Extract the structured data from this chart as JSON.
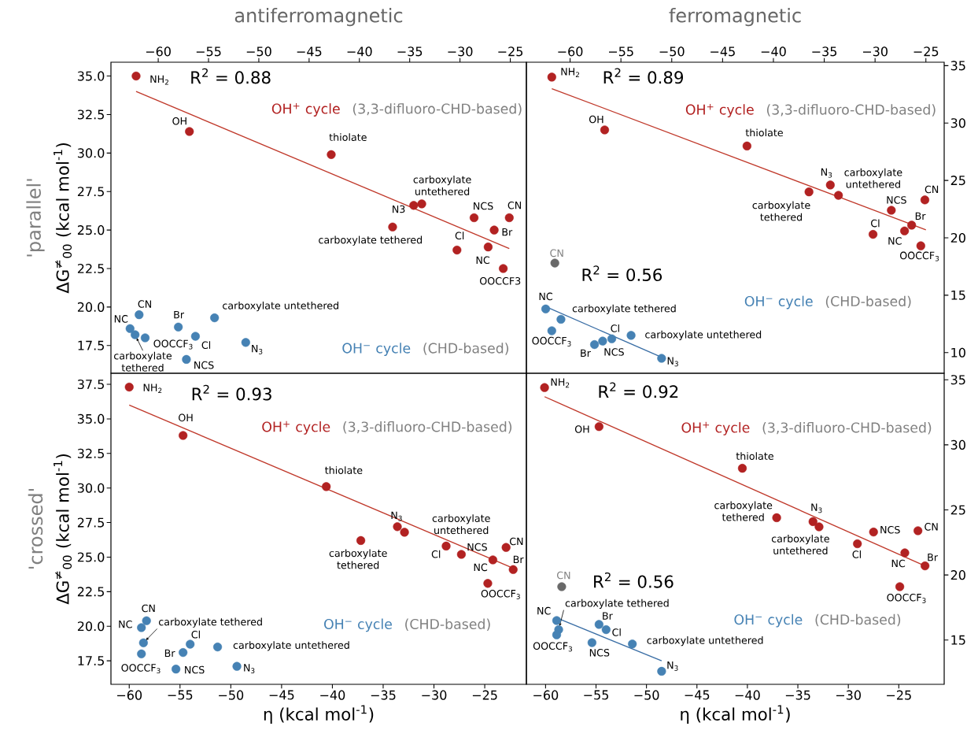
{
  "chart_data": [
    {
      "type": "scatter",
      "title": "antiferromagnetic",
      "ylabel": "ΔG$^{≠}$$_{00}$  (kcal mol$^{-1}$)",
      "xlim": [
        -64.7,
        -23.4
      ],
      "ylim": [
        15.7,
        35.9
      ],
      "xticks": [
        {
          "value": -60,
          "label": "−60"
        },
        {
          "value": -55,
          "label": "−55"
        },
        {
          "value": -50,
          "label": "−50"
        },
        {
          "value": -45,
          "label": "−45"
        },
        {
          "value": -40,
          "label": "−40"
        },
        {
          "value": -35,
          "label": "−35"
        },
        {
          "value": -30,
          "label": "−30"
        },
        {
          "value": -25,
          "label": "−25"
        }
      ],
      "yticks": [
        {
          "value": 17.5,
          "label": "17.5"
        },
        {
          "value": 20,
          "label": "20.0"
        },
        {
          "value": 22.5,
          "label": "22.5"
        },
        {
          "value": 25,
          "label": "25.0"
        },
        {
          "value": 27.5,
          "label": "27.5"
        },
        {
          "value": 30,
          "label": "30.0"
        },
        {
          "value": 32.5,
          "label": "32.5"
        },
        {
          "value": 35,
          "label": "35.0"
        }
      ],
      "series": [
        {
          "name": "OH$^{+}$ cycle",
          "marker": "circle",
          "color": "#b22222",
          "x": [
            -62.2,
            -56.9,
            -42.8,
            -34.6,
            -33.8,
            -36.7,
            -28.6,
            -25.1,
            -30.3,
            -26.6,
            -27.2,
            -25.7
          ],
          "values": [
            35.0,
            31.4,
            29.9,
            26.6,
            26.7,
            25.2,
            25.8,
            25.8,
            23.7,
            25.0,
            23.9,
            22.5
          ]
        },
        {
          "name": "OH$^{−}$ cycle",
          "marker": "circle",
          "color": "#4682b4",
          "x": [
            -61.9,
            -62.8,
            -62.3,
            -61.3,
            -58.0,
            -56.3,
            -54.4,
            -57.2,
            -51.3
          ],
          "values": [
            19.5,
            18.6,
            18.2,
            18.0,
            18.7,
            18.1,
            19.3,
            16.6,
            17.7
          ]
        },
        {
          "type": "line",
          "marker": "none",
          "color": "#c0392b",
          "x": [
            -62.2,
            -25.1
          ],
          "values": [
            34.0,
            23.8
          ]
        }
      ],
      "annotations": [
        "'parallel'",
        "R$^{2}$ = 0.88",
        "(3,3-difluoro-CHD-based)",
        "(CHD-based)",
        {
          "text": "NH$_{2}$",
          "x": -62.2,
          "y": 35.0
        },
        {
          "text": "OH",
          "x": -56.9,
          "y": 31.4
        },
        {
          "text": "thiolate",
          "x": -42.8,
          "y": 29.9
        },
        {
          "text": "N3",
          "x": -34.6,
          "y": 26.6
        },
        {
          "text": "carboxylate untethered",
          "x": -33.8,
          "y": 26.7
        },
        {
          "text": "carboxylate tethered",
          "x": -36.7,
          "y": 25.2
        },
        {
          "text": "NCS",
          "x": -28.6,
          "y": 25.8
        },
        {
          "text": "CN",
          "x": -25.1,
          "y": 25.8
        },
        {
          "text": "Cl",
          "x": -30.3,
          "y": 23.7
        },
        {
          "text": "Br",
          "x": -26.6,
          "y": 25.0
        },
        {
          "text": "NC",
          "x": -27.2,
          "y": 23.9
        },
        {
          "text": "OOCCF3",
          "x": -25.7,
          "y": 22.5
        },
        {
          "text": "CN",
          "x": -61.9,
          "y": 19.5
        },
        {
          "text": "NC",
          "x": -62.8,
          "y": 18.6
        },
        {
          "text": "carboxylate tethered",
          "x": -62.3,
          "y": 18.2
        },
        {
          "text": "OOCCF$_{3}$",
          "x": -61.3,
          "y": 18.0
        },
        {
          "text": "Br",
          "x": -58.0,
          "y": 18.7
        },
        {
          "text": "Cl",
          "x": -56.3,
          "y": 18.1
        },
        {
          "text": "carboxylate untethered",
          "x": -54.4,
          "y": 19.3
        },
        {
          "text": "NCS",
          "x": -57.2,
          "y": 16.6
        },
        {
          "text": "N$_{3}$",
          "x": -51.3,
          "y": 17.7
        }
      ]
    },
    {
      "type": "scatter",
      "title": "ferromagnetic",
      "xlim": [
        -64.3,
        -23.2
      ],
      "ylim": [
        8.2,
        35.3
      ],
      "xticks": [
        {
          "value": -60,
          "label": "−60"
        },
        {
          "value": -55,
          "label": "−55"
        },
        {
          "value": -50,
          "label": "−50"
        },
        {
          "value": -45,
          "label": "−45"
        },
        {
          "value": -40,
          "label": "−40"
        },
        {
          "value": -35,
          "label": "−35"
        },
        {
          "value": -30,
          "label": "−30"
        },
        {
          "value": -25,
          "label": "−25"
        }
      ],
      "yticks": [
        10,
        15,
        20,
        25,
        30,
        35
      ],
      "series": [
        {
          "name": "OH$^{+}$ cycle",
          "marker": "circle",
          "color": "#b22222",
          "x": [
            -61.8,
            -56.6,
            -42.6,
            -34.4,
            -33.6,
            -36.5,
            -28.4,
            -25.1,
            -30.2,
            -26.4,
            -27.1,
            -25.5
          ],
          "values": [
            34.0,
            29.4,
            28.0,
            24.6,
            23.7,
            24.0,
            22.4,
            23.3,
            20.3,
            21.1,
            20.6,
            19.3
          ]
        },
        {
          "name": "OH$^{−}$ cycle",
          "marker": "circle",
          "color": "#4682b4",
          "x": [
            -62.4,
            -60.9,
            -61.8,
            -57.6,
            -56.8,
            -55.9,
            -54.0,
            -51.0
          ],
          "values": [
            13.8,
            12.9,
            11.9,
            10.7,
            11.0,
            11.2,
            11.5,
            9.5
          ]
        },
        {
          "type": "line",
          "marker": "none",
          "color": "#c0392b",
          "x": [
            -61.8,
            -25.0
          ],
          "values": [
            33.0,
            20.7
          ]
        },
        {
          "type": "line",
          "marker": "none",
          "color": "#3a6ea5",
          "x": [
            -62.4,
            -51.0
          ],
          "values": [
            14.0,
            9.6
          ]
        },
        {
          "marker": "circle",
          "color": "#696969",
          "x": [
            -61.5
          ],
          "values": [
            17.8
          ]
        }
      ],
      "annotations": [
        "R$^{2}$ = 0.89",
        "R$^{2}$ = 0.56",
        "(3,3-difluoro-CHD-based)",
        "(CHD-based)",
        {
          "text": "NH$_{2}$",
          "x": -61.8,
          "y": 34.0
        },
        {
          "text": "OH",
          "x": -56.6,
          "y": 29.4
        },
        {
          "text": "thiolate",
          "x": -42.6,
          "y": 28.0
        },
        {
          "text": "N$_{3}$",
          "x": -34.4,
          "y": 24.6
        },
        {
          "text": "carboxylate untethered",
          "x": -33.6,
          "y": 23.7
        },
        {
          "text": "carboxylate tethered",
          "x": -36.5,
          "y": 24.0
        },
        {
          "text": "NCS",
          "x": -28.4,
          "y": 22.4
        },
        {
          "text": "CN",
          "x": -25.1,
          "y": 23.3
        },
        {
          "text": "Cl",
          "x": -30.2,
          "y": 20.3
        },
        {
          "text": "Br",
          "x": -26.4,
          "y": 21.1
        },
        {
          "text": "NC",
          "x": -27.1,
          "y": 20.6
        },
        {
          "text": "OOCCF$_{3}$",
          "x": -25.5,
          "y": 19.3
        },
        {
          "text": "CN",
          "x": -61.5,
          "y": 17.8
        },
        {
          "text": "NC",
          "x": -62.4,
          "y": 13.8
        },
        {
          "text": "carboxylate tethered",
          "x": -60.9,
          "y": 12.9
        },
        {
          "text": "OOCCF$_{3}$",
          "x": -61.8,
          "y": 11.9
        },
        {
          "text": "Br",
          "x": -57.6,
          "y": 10.7
        },
        {
          "text": "NCS",
          "x": -56.8,
          "y": 11.0
        },
        {
          "text": "Cl",
          "x": -55.9,
          "y": 11.2
        },
        {
          "text": "carboxylate untethered",
          "x": -54.0,
          "y": 11.5
        },
        {
          "text": "N$_{3}$",
          "x": -51.0,
          "y": 9.5
        }
      ]
    },
    {
      "type": "scatter",
      "xlabel": "η  (kcal mol$^{-1}$)",
      "ylabel": "ΔG$^{≠}$$_{00}$  (kcal mol$^{-1}$)",
      "xlim": [
        -61.8,
        -20.9
      ],
      "ylim": [
        15.8,
        38.3
      ],
      "xticks": [
        {
          "value": -60,
          "label": "−60"
        },
        {
          "value": -55,
          "label": "−55"
        },
        {
          "value": -50,
          "label": "−50"
        },
        {
          "value": -45,
          "label": "−45"
        },
        {
          "value": -40,
          "label": "−40"
        },
        {
          "value": -35,
          "label": "−35"
        },
        {
          "value": -30,
          "label": "−30"
        },
        {
          "value": -25,
          "label": "−25"
        }
      ],
      "yticks": [
        {
          "value": 17.5,
          "label": "17.5"
        },
        {
          "value": 20,
          "label": "20.0"
        },
        {
          "value": 22.5,
          "label": "22.5"
        },
        {
          "value": 25,
          "label": "25.0"
        },
        {
          "value": 27.5,
          "label": "27.5"
        },
        {
          "value": 30,
          "label": "30.0"
        },
        {
          "value": 32.5,
          "label": "32.5"
        },
        {
          "value": 35,
          "label": "35.0"
        },
        {
          "value": 37.5,
          "label": "37.5"
        }
      ],
      "series": [
        {
          "name": "OH$^{+}$ cycle",
          "marker": "circle",
          "color": "#b22222",
          "x": [
            -60.0,
            -54.7,
            -40.6,
            -33.6,
            -32.9,
            -37.2,
            -27.3,
            -22.9,
            -28.8,
            -22.2,
            -24.2,
            -24.7
          ],
          "values": [
            37.3,
            33.8,
            30.1,
            27.2,
            26.8,
            26.2,
            25.2,
            25.7,
            25.8,
            24.1,
            24.8,
            23.1
          ]
        },
        {
          "name": "OH$^{−}$ cycle",
          "marker": "circle",
          "color": "#4682b4",
          "x": [
            -58.3,
            -58.8,
            -58.6,
            -58.8,
            -54.7,
            -54.0,
            -51.3,
            -55.4,
            -49.4
          ],
          "values": [
            20.4,
            19.9,
            18.8,
            18.0,
            18.1,
            18.7,
            18.5,
            16.9,
            17.1
          ]
        },
        {
          "type": "line",
          "marker": "none",
          "color": "#c0392b",
          "x": [
            -60.0,
            -22.5
          ],
          "values": [
            36.0,
            24.3
          ]
        }
      ],
      "annotations": [
        "'crossed'",
        "R$^{2}$ = 0.93",
        "(3,3-difluoro-CHD-based)",
        "(CHD-based)",
        {
          "text": "NH$_{2}$",
          "x": -60.0,
          "y": 37.3
        },
        {
          "text": "OH",
          "x": -54.7,
          "y": 33.8
        },
        {
          "text": "thiolate",
          "x": -40.6,
          "y": 30.1
        },
        {
          "text": "N$_{3}$",
          "x": -33.6,
          "y": 27.2
        },
        {
          "text": "carboxylate untethered",
          "x": -32.9,
          "y": 26.8
        },
        {
          "text": "carboxylate tethered",
          "x": -37.2,
          "y": 26.2
        },
        {
          "text": "NCS",
          "x": -27.3,
          "y": 25.2
        },
        {
          "text": "CN",
          "x": -22.9,
          "y": 25.7
        },
        {
          "text": "Cl",
          "x": -28.8,
          "y": 25.8
        },
        {
          "text": "Br",
          "x": -22.2,
          "y": 24.1
        },
        {
          "text": "NC",
          "x": -24.2,
          "y": 24.8
        },
        {
          "text": "OOCCF$_{3}$",
          "x": -24.7,
          "y": 23.1
        },
        {
          "text": "CN",
          "x": -58.3,
          "y": 20.4
        },
        {
          "text": "NC",
          "x": -58.8,
          "y": 19.9
        },
        {
          "text": "carboxylate tethered",
          "x": -58.6,
          "y": 18.8
        },
        {
          "text": "OOCCF$_{3}$",
          "x": -58.8,
          "y": 18.0
        },
        {
          "text": "Br",
          "x": -54.7,
          "y": 18.1
        },
        {
          "text": "Cl",
          "x": -54.0,
          "y": 18.7
        },
        {
          "text": "carboxylate untethered",
          "x": -51.3,
          "y": 18.5
        },
        {
          "text": "NCS",
          "x": -55.4,
          "y": 16.9
        },
        {
          "text": "N$_{3}$",
          "x": -49.4,
          "y": 17.1
        }
      ]
    },
    {
      "type": "scatter",
      "xlabel": "η  (kcal mol$^{-1}$)",
      "xlim": [
        -61.9,
        -20.5
      ],
      "ylim": [
        11.6,
        35.5
      ],
      "xticks": [
        {
          "value": -60,
          "label": "−60"
        },
        {
          "value": -55,
          "label": "−55"
        },
        {
          "value": -50,
          "label": "−50"
        },
        {
          "value": -45,
          "label": "−45"
        },
        {
          "value": -40,
          "label": "−40"
        },
        {
          "value": -35,
          "label": "−35"
        },
        {
          "value": -30,
          "label": "−30"
        },
        {
          "value": -25,
          "label": "−25"
        }
      ],
      "yticks": [
        15,
        20,
        25,
        30,
        35
      ],
      "series": [
        {
          "name": "OH$^{+}$ cycle",
          "marker": "circle",
          "color": "#b22222",
          "x": [
            -60.1,
            -54.7,
            -40.5,
            -33.5,
            -32.9,
            -37.1,
            -27.5,
            -23.1,
            -29.1,
            -22.4,
            -24.4,
            -24.9
          ],
          "values": [
            34.4,
            31.4,
            28.2,
            24.1,
            23.7,
            24.4,
            23.3,
            23.4,
            22.4,
            20.7,
            21.7,
            19.1
          ]
        },
        {
          "name": "OH$^{−}$ cycle",
          "marker": "circle",
          "color": "#4682b4",
          "x": [
            -58.9,
            -58.7,
            -58.9,
            -54.7,
            -54.0,
            -55.4,
            -51.4,
            -48.5
          ],
          "values": [
            16.5,
            15.8,
            15.4,
            16.2,
            15.8,
            14.8,
            14.7,
            12.6
          ]
        },
        {
          "type": "line",
          "marker": "none",
          "color": "#c0392b",
          "x": [
            -60.1,
            -22.4
          ],
          "values": [
            33.7,
            20.7
          ]
        },
        {
          "type": "line",
          "marker": "none",
          "color": "#3a6ea5",
          "x": [
            -58.9,
            -48.5
          ],
          "values": [
            16.7,
            13.4
          ]
        },
        {
          "marker": "circle",
          "color": "#696969",
          "x": [
            -58.4
          ],
          "values": [
            19.1
          ]
        }
      ],
      "annotations": [
        "R$^{2}$ = 0.92",
        "R$^{2}$ = 0.56",
        "(3,3-difluoro-CHD-based)",
        "(CHD-based)",
        {
          "text": "NH$_{2}$",
          "x": -60.1,
          "y": 34.4
        },
        {
          "text": "OH",
          "x": -54.7,
          "y": 31.4
        },
        {
          "text": "thiolate",
          "x": -40.5,
          "y": 28.2
        },
        {
          "text": "N$_{3}$",
          "x": -33.5,
          "y": 24.1
        },
        {
          "text": "carboxylate untethered",
          "x": -32.9,
          "y": 23.7
        },
        {
          "text": "carboxylate tethered",
          "x": -37.1,
          "y": 24.4
        },
        {
          "text": "NCS",
          "x": -27.5,
          "y": 23.3
        },
        {
          "text": "CN",
          "x": -23.1,
          "y": 23.4
        },
        {
          "text": "Cl",
          "x": -29.1,
          "y": 22.4
        },
        {
          "text": "Br",
          "x": -22.4,
          "y": 20.7
        },
        {
          "text": "NC",
          "x": -24.4,
          "y": 21.7
        },
        {
          "text": "OOCCF$_{3}$",
          "x": -24.9,
          "y": 19.1
        },
        {
          "text": "CN",
          "x": -58.4,
          "y": 19.1
        },
        {
          "text": "NC",
          "x": -58.9,
          "y": 16.5
        },
        {
          "text": "carboxylate tethered",
          "x": -58.7,
          "y": 15.8
        },
        {
          "text": "OOCCF$_{3}$",
          "x": -58.9,
          "y": 15.4
        },
        {
          "text": "Br",
          "x": -54.7,
          "y": 16.2
        },
        {
          "text": "Cl",
          "x": -54.0,
          "y": 15.8
        },
        {
          "text": "NCS",
          "x": -55.4,
          "y": 14.8
        },
        {
          "text": "carboxylate untethered",
          "x": -51.4,
          "y": 14.7
        },
        {
          "text": "N$_{3}$",
          "x": -48.5,
          "y": 12.6
        }
      ]
    }
  ]
}
